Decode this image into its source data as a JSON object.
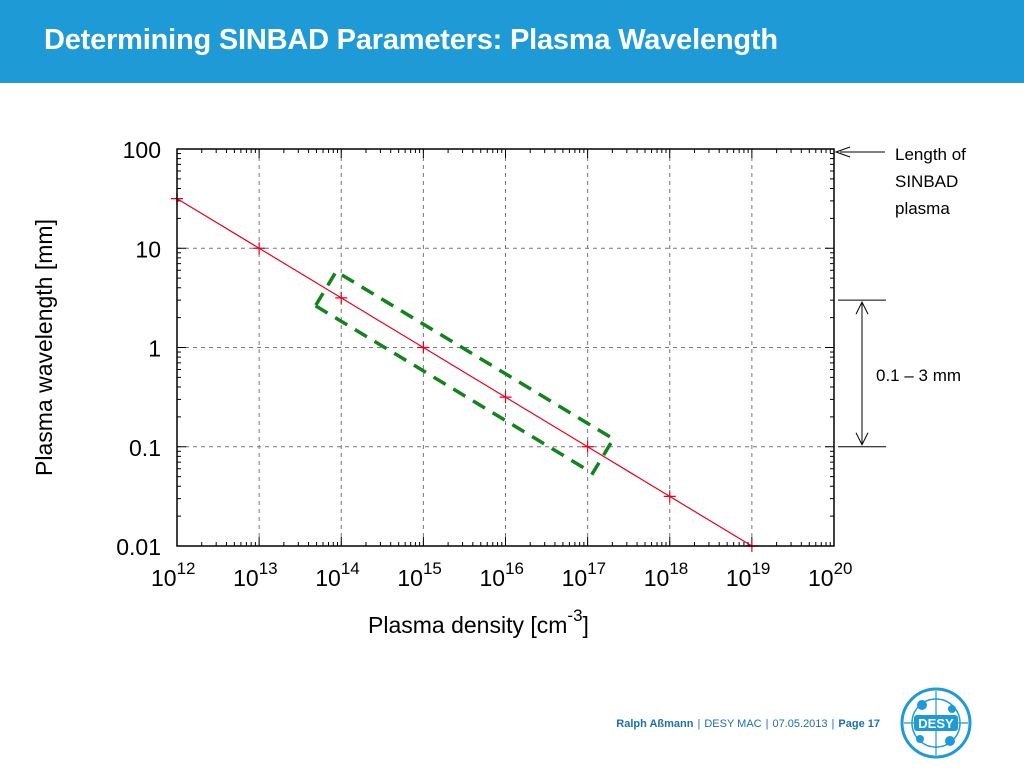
{
  "slide": {
    "title": "Determining SINBAD Parameters: Plasma Wavelength"
  },
  "footer": {
    "author": "Ralph Aßmann",
    "event": "DESY MAC",
    "date": "07.05.2013",
    "page_label": "Page 17"
  },
  "logo": {
    "text": "DESY"
  },
  "colors": {
    "header": "#1e9bd7",
    "line": "#e8001c",
    "box": "#13841c",
    "footer_text": "#1e6fb0"
  },
  "chart_data": {
    "type": "line",
    "xlabel": "Plasma density [cm",
    "xlabel_sup": "-3",
    "xlabel_end": "]",
    "ylabel": "Plasma wavelength [mm]",
    "x_scale": "log",
    "y_scale": "log",
    "xlim": [
      1000000000000.0,
      1e+20
    ],
    "ylim": [
      0.01,
      100
    ],
    "grid": true,
    "x_ticks": [
      {
        "base": "10",
        "exp": "12"
      },
      {
        "base": "10",
        "exp": "13"
      },
      {
        "base": "10",
        "exp": "14"
      },
      {
        "base": "10",
        "exp": "15"
      },
      {
        "base": "10",
        "exp": "16"
      },
      {
        "base": "10",
        "exp": "17"
      },
      {
        "base": "10",
        "exp": "18"
      },
      {
        "base": "10",
        "exp": "19"
      },
      {
        "base": "10",
        "exp": "20"
      }
    ],
    "y_ticks": [
      "100",
      "10",
      "1",
      "0.1",
      "0.01"
    ],
    "series": [
      {
        "x": [
          1000000000000.0,
          10000000000000.0,
          100000000000000.0,
          1000000000000000.0,
          1e+16,
          1e+17,
          1e+18,
          1e+19
        ],
        "y": [
          31.6,
          10,
          3.16,
          1,
          0.316,
          0.1,
          0.0316,
          0.01
        ]
      }
    ],
    "annotations": [
      {
        "text": "Length of",
        "target_y": 100
      },
      {
        "text": "SINBAD",
        "target_y": 100
      },
      {
        "text": "plasma",
        "target_y": 100
      },
      {
        "text": "0.1 – 3 mm",
        "range_y": [
          0.1,
          3
        ]
      }
    ]
  }
}
